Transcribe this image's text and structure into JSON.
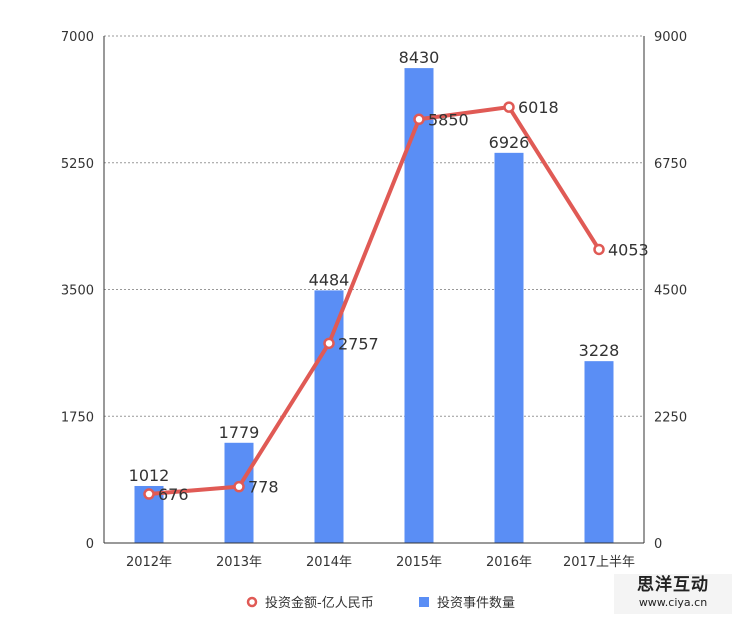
{
  "chart_data": {
    "type": "bar",
    "categories": [
      "2012年",
      "2013年",
      "2014年",
      "2015年",
      "2016年",
      "2017上半年"
    ],
    "series": [
      {
        "name": "投资事件数量",
        "type": "bar",
        "axis": "right",
        "values": [
          1012,
          1779,
          4484,
          8430,
          6926,
          3228
        ],
        "color": "#5a8ef5"
      },
      {
        "name": "投资金额-亿人民币",
        "type": "line",
        "axis": "left",
        "values": [
          676,
          778,
          2757,
          5850,
          6018,
          4053
        ],
        "color": "#e05a55"
      }
    ],
    "left_axis": {
      "ylim": [
        0,
        7000
      ],
      "ticks": [
        "0",
        "1750",
        "3500",
        "5250",
        "7000"
      ]
    },
    "right_axis": {
      "ylim": [
        0,
        9000
      ],
      "ticks": [
        "0",
        "2250",
        "4500",
        "6750",
        "9000"
      ]
    },
    "grid": true,
    "legend_position": "bottom"
  },
  "watermark": {
    "brand": "思洋互动",
    "url": "www.ciya.cn"
  }
}
